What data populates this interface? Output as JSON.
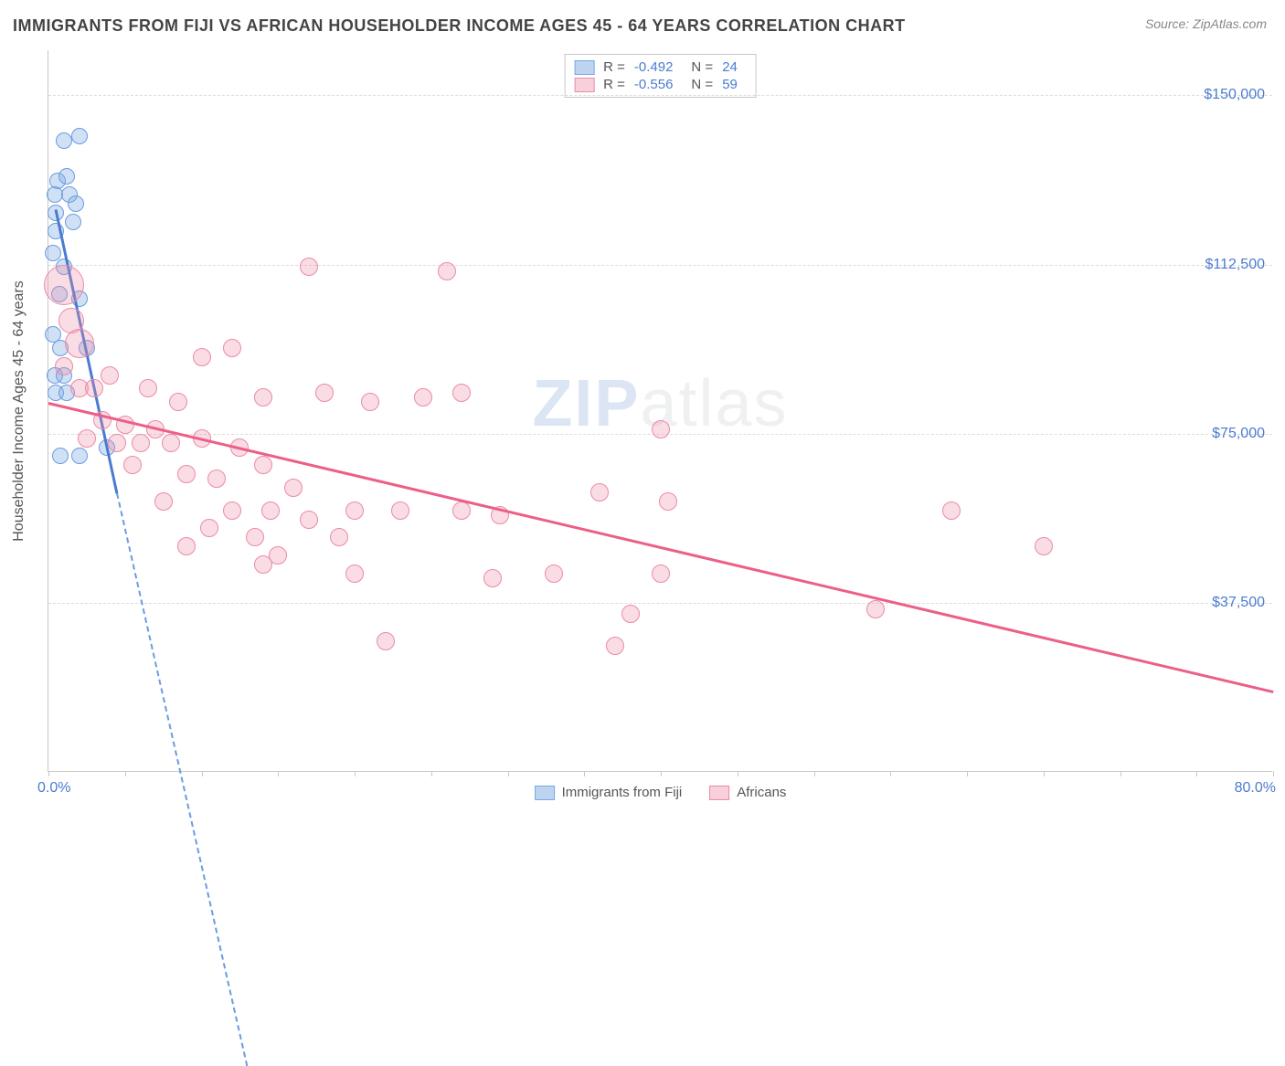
{
  "title": "IMMIGRANTS FROM FIJI VS AFRICAN HOUSEHOLDER INCOME AGES 45 - 64 YEARS CORRELATION CHART",
  "source": "Source: ZipAtlas.com",
  "watermark_zip": "ZIP",
  "watermark_atlas": "atlas",
  "chart": {
    "type": "scatter",
    "x_axis": {
      "min": 0,
      "max": 80,
      "ticks": [
        0,
        5,
        10,
        15,
        20,
        25,
        30,
        35,
        40,
        45,
        50,
        55,
        60,
        65,
        70,
        75,
        80
      ],
      "label_min": "0.0%",
      "label_max": "80.0%"
    },
    "y_axis": {
      "min": 0,
      "max": 160000,
      "gridlines": [
        37500,
        75000,
        112500,
        150000
      ],
      "tick_labels": [
        "$37,500",
        "$75,000",
        "$112,500",
        "$150,000"
      ],
      "title": "Householder Income Ages 45 - 64 years"
    },
    "background_color": "#ffffff",
    "grid_color": "#dcdcdc",
    "series": [
      {
        "name": "Immigrants from Fiji",
        "color_fill": "rgba(122,168,226,0.35)",
        "color_stroke": "#6a9be0",
        "swatch_fill": "#bcd4f0",
        "swatch_border": "#7aa8e2",
        "r_value": "-0.492",
        "n_value": "24",
        "point_radius": 9,
        "trend": {
          "x1": 0.5,
          "y1": 125000,
          "x2": 4.5,
          "y2": 62000,
          "color": "#4a7bd0",
          "extend_dash": true,
          "dash_x2": 13,
          "dash_y2": -65000
        },
        "points": [
          {
            "x": 1.0,
            "y": 140000
          },
          {
            "x": 2.0,
            "y": 141000
          },
          {
            "x": 0.6,
            "y": 131000
          },
          {
            "x": 1.2,
            "y": 132000
          },
          {
            "x": 0.4,
            "y": 128000
          },
          {
            "x": 1.4,
            "y": 128000
          },
          {
            "x": 0.5,
            "y": 124000
          },
          {
            "x": 1.8,
            "y": 126000
          },
          {
            "x": 0.5,
            "y": 120000
          },
          {
            "x": 1.6,
            "y": 122000
          },
          {
            "x": 0.3,
            "y": 115000
          },
          {
            "x": 1.0,
            "y": 112000
          },
          {
            "x": 0.7,
            "y": 106000
          },
          {
            "x": 2.0,
            "y": 105000
          },
          {
            "x": 0.3,
            "y": 97000
          },
          {
            "x": 0.8,
            "y": 94000
          },
          {
            "x": 2.5,
            "y": 94000
          },
          {
            "x": 0.4,
            "y": 88000
          },
          {
            "x": 1.0,
            "y": 88000
          },
          {
            "x": 0.5,
            "y": 84000
          },
          {
            "x": 1.2,
            "y": 84000
          },
          {
            "x": 0.8,
            "y": 70000
          },
          {
            "x": 2.0,
            "y": 70000
          },
          {
            "x": 3.8,
            "y": 72000
          }
        ]
      },
      {
        "name": "Africans",
        "color_fill": "rgba(240,140,165,0.30)",
        "color_stroke": "#ec8aa6",
        "swatch_fill": "#f7d0db",
        "swatch_border": "#ec8aa6",
        "r_value": "-0.556",
        "n_value": "59",
        "point_radius": 10,
        "trend": {
          "x1": 0,
          "y1": 82000,
          "x2": 80,
          "y2": 18000,
          "color": "#ec5f87",
          "extend_dash": false
        },
        "points": [
          {
            "x": 17.0,
            "y": 112000,
            "r": 10
          },
          {
            "x": 26.0,
            "y": 111000,
            "r": 10
          },
          {
            "x": 1.0,
            "y": 108000,
            "r": 22
          },
          {
            "x": 1.5,
            "y": 100000,
            "r": 14
          },
          {
            "x": 2.0,
            "y": 95000,
            "r": 16
          },
          {
            "x": 1.0,
            "y": 90000,
            "r": 10
          },
          {
            "x": 10.0,
            "y": 92000,
            "r": 10
          },
          {
            "x": 12.0,
            "y": 94000,
            "r": 10
          },
          {
            "x": 2.0,
            "y": 85000,
            "r": 10
          },
          {
            "x": 3.0,
            "y": 85000,
            "r": 10
          },
          {
            "x": 6.5,
            "y": 85000,
            "r": 10
          },
          {
            "x": 4.0,
            "y": 88000,
            "r": 10
          },
          {
            "x": 8.5,
            "y": 82000,
            "r": 10
          },
          {
            "x": 14.0,
            "y": 83000,
            "r": 10
          },
          {
            "x": 18.0,
            "y": 84000,
            "r": 10
          },
          {
            "x": 21.0,
            "y": 82000,
            "r": 10
          },
          {
            "x": 24.5,
            "y": 83000,
            "r": 10
          },
          {
            "x": 27.0,
            "y": 84000,
            "r": 10
          },
          {
            "x": 3.5,
            "y": 78000,
            "r": 10
          },
          {
            "x": 5.0,
            "y": 77000,
            "r": 10
          },
          {
            "x": 7.0,
            "y": 76000,
            "r": 10
          },
          {
            "x": 2.5,
            "y": 74000,
            "r": 10
          },
          {
            "x": 4.5,
            "y": 73000,
            "r": 10
          },
          {
            "x": 6.0,
            "y": 73000,
            "r": 10
          },
          {
            "x": 8.0,
            "y": 73000,
            "r": 10
          },
          {
            "x": 10.0,
            "y": 74000,
            "r": 10
          },
          {
            "x": 12.5,
            "y": 72000,
            "r": 10
          },
          {
            "x": 40.0,
            "y": 76000,
            "r": 10
          },
          {
            "x": 5.5,
            "y": 68000,
            "r": 10
          },
          {
            "x": 9.0,
            "y": 66000,
            "r": 10
          },
          {
            "x": 11.0,
            "y": 65000,
            "r": 10
          },
          {
            "x": 14.0,
            "y": 68000,
            "r": 10
          },
          {
            "x": 16.0,
            "y": 63000,
            "r": 10
          },
          {
            "x": 7.5,
            "y": 60000,
            "r": 10
          },
          {
            "x": 12.0,
            "y": 58000,
            "r": 10
          },
          {
            "x": 14.5,
            "y": 58000,
            "r": 10
          },
          {
            "x": 17.0,
            "y": 56000,
            "r": 10
          },
          {
            "x": 20.0,
            "y": 58000,
            "r": 10
          },
          {
            "x": 23.0,
            "y": 58000,
            "r": 10
          },
          {
            "x": 27.0,
            "y": 58000,
            "r": 10
          },
          {
            "x": 29.5,
            "y": 57000,
            "r": 10
          },
          {
            "x": 36.0,
            "y": 62000,
            "r": 10
          },
          {
            "x": 40.5,
            "y": 60000,
            "r": 10
          },
          {
            "x": 10.5,
            "y": 54000,
            "r": 10
          },
          {
            "x": 13.5,
            "y": 52000,
            "r": 10
          },
          {
            "x": 19.0,
            "y": 52000,
            "r": 10
          },
          {
            "x": 9.0,
            "y": 50000,
            "r": 10
          },
          {
            "x": 15.0,
            "y": 48000,
            "r": 10
          },
          {
            "x": 59.0,
            "y": 58000,
            "r": 10
          },
          {
            "x": 65.0,
            "y": 50000,
            "r": 10
          },
          {
            "x": 14.0,
            "y": 46000,
            "r": 10
          },
          {
            "x": 20.0,
            "y": 44000,
            "r": 10
          },
          {
            "x": 29.0,
            "y": 43000,
            "r": 10
          },
          {
            "x": 33.0,
            "y": 44000,
            "r": 10
          },
          {
            "x": 40.0,
            "y": 44000,
            "r": 10
          },
          {
            "x": 38.0,
            "y": 35000,
            "r": 10
          },
          {
            "x": 54.0,
            "y": 36000,
            "r": 10
          },
          {
            "x": 22.0,
            "y": 29000,
            "r": 10
          },
          {
            "x": 37.0,
            "y": 28000,
            "r": 10
          }
        ]
      }
    ]
  }
}
